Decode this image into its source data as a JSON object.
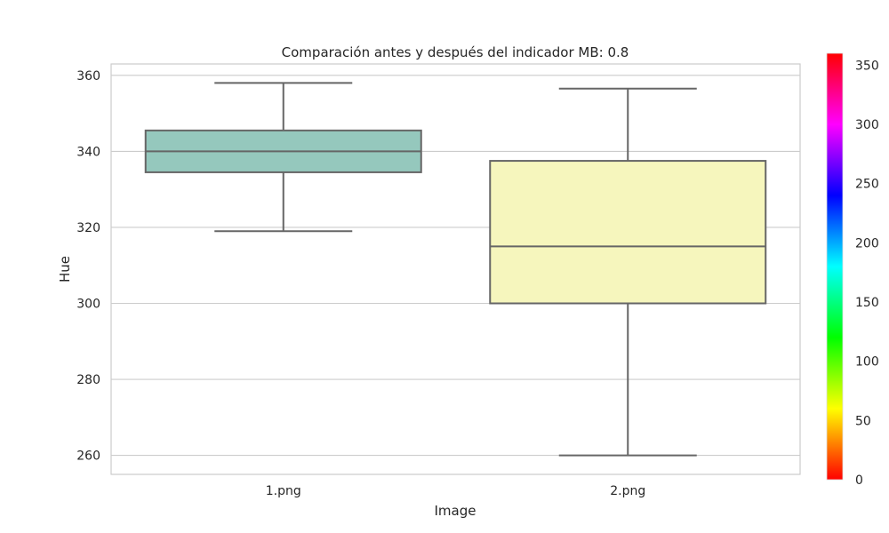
{
  "chart_data": {
    "type": "box",
    "title": "Comparación antes y después del indicador MB: 0.8",
    "xlabel": "Image",
    "ylabel": "Hue",
    "categories": [
      "1.png",
      "2.png"
    ],
    "boxes": [
      {
        "category": "1.png",
        "whisker_low": 319,
        "q1": 334.5,
        "median": 340,
        "q3": 345.5,
        "whisker_high": 358,
        "color": "#95c8bd"
      },
      {
        "category": "2.png",
        "whisker_low": 260,
        "q1": 300,
        "median": 315,
        "q3": 337.5,
        "whisker_high": 356.5,
        "color": "#f6f6bd"
      }
    ],
    "ylim": [
      255,
      363
    ],
    "yticks": [
      260,
      280,
      300,
      320,
      340,
      360
    ],
    "grid": true,
    "colorbar": {
      "range": [
        0,
        360
      ],
      "ticks": [
        0,
        50,
        100,
        150,
        200,
        250,
        300,
        350
      ],
      "colormap": "hsv"
    }
  }
}
